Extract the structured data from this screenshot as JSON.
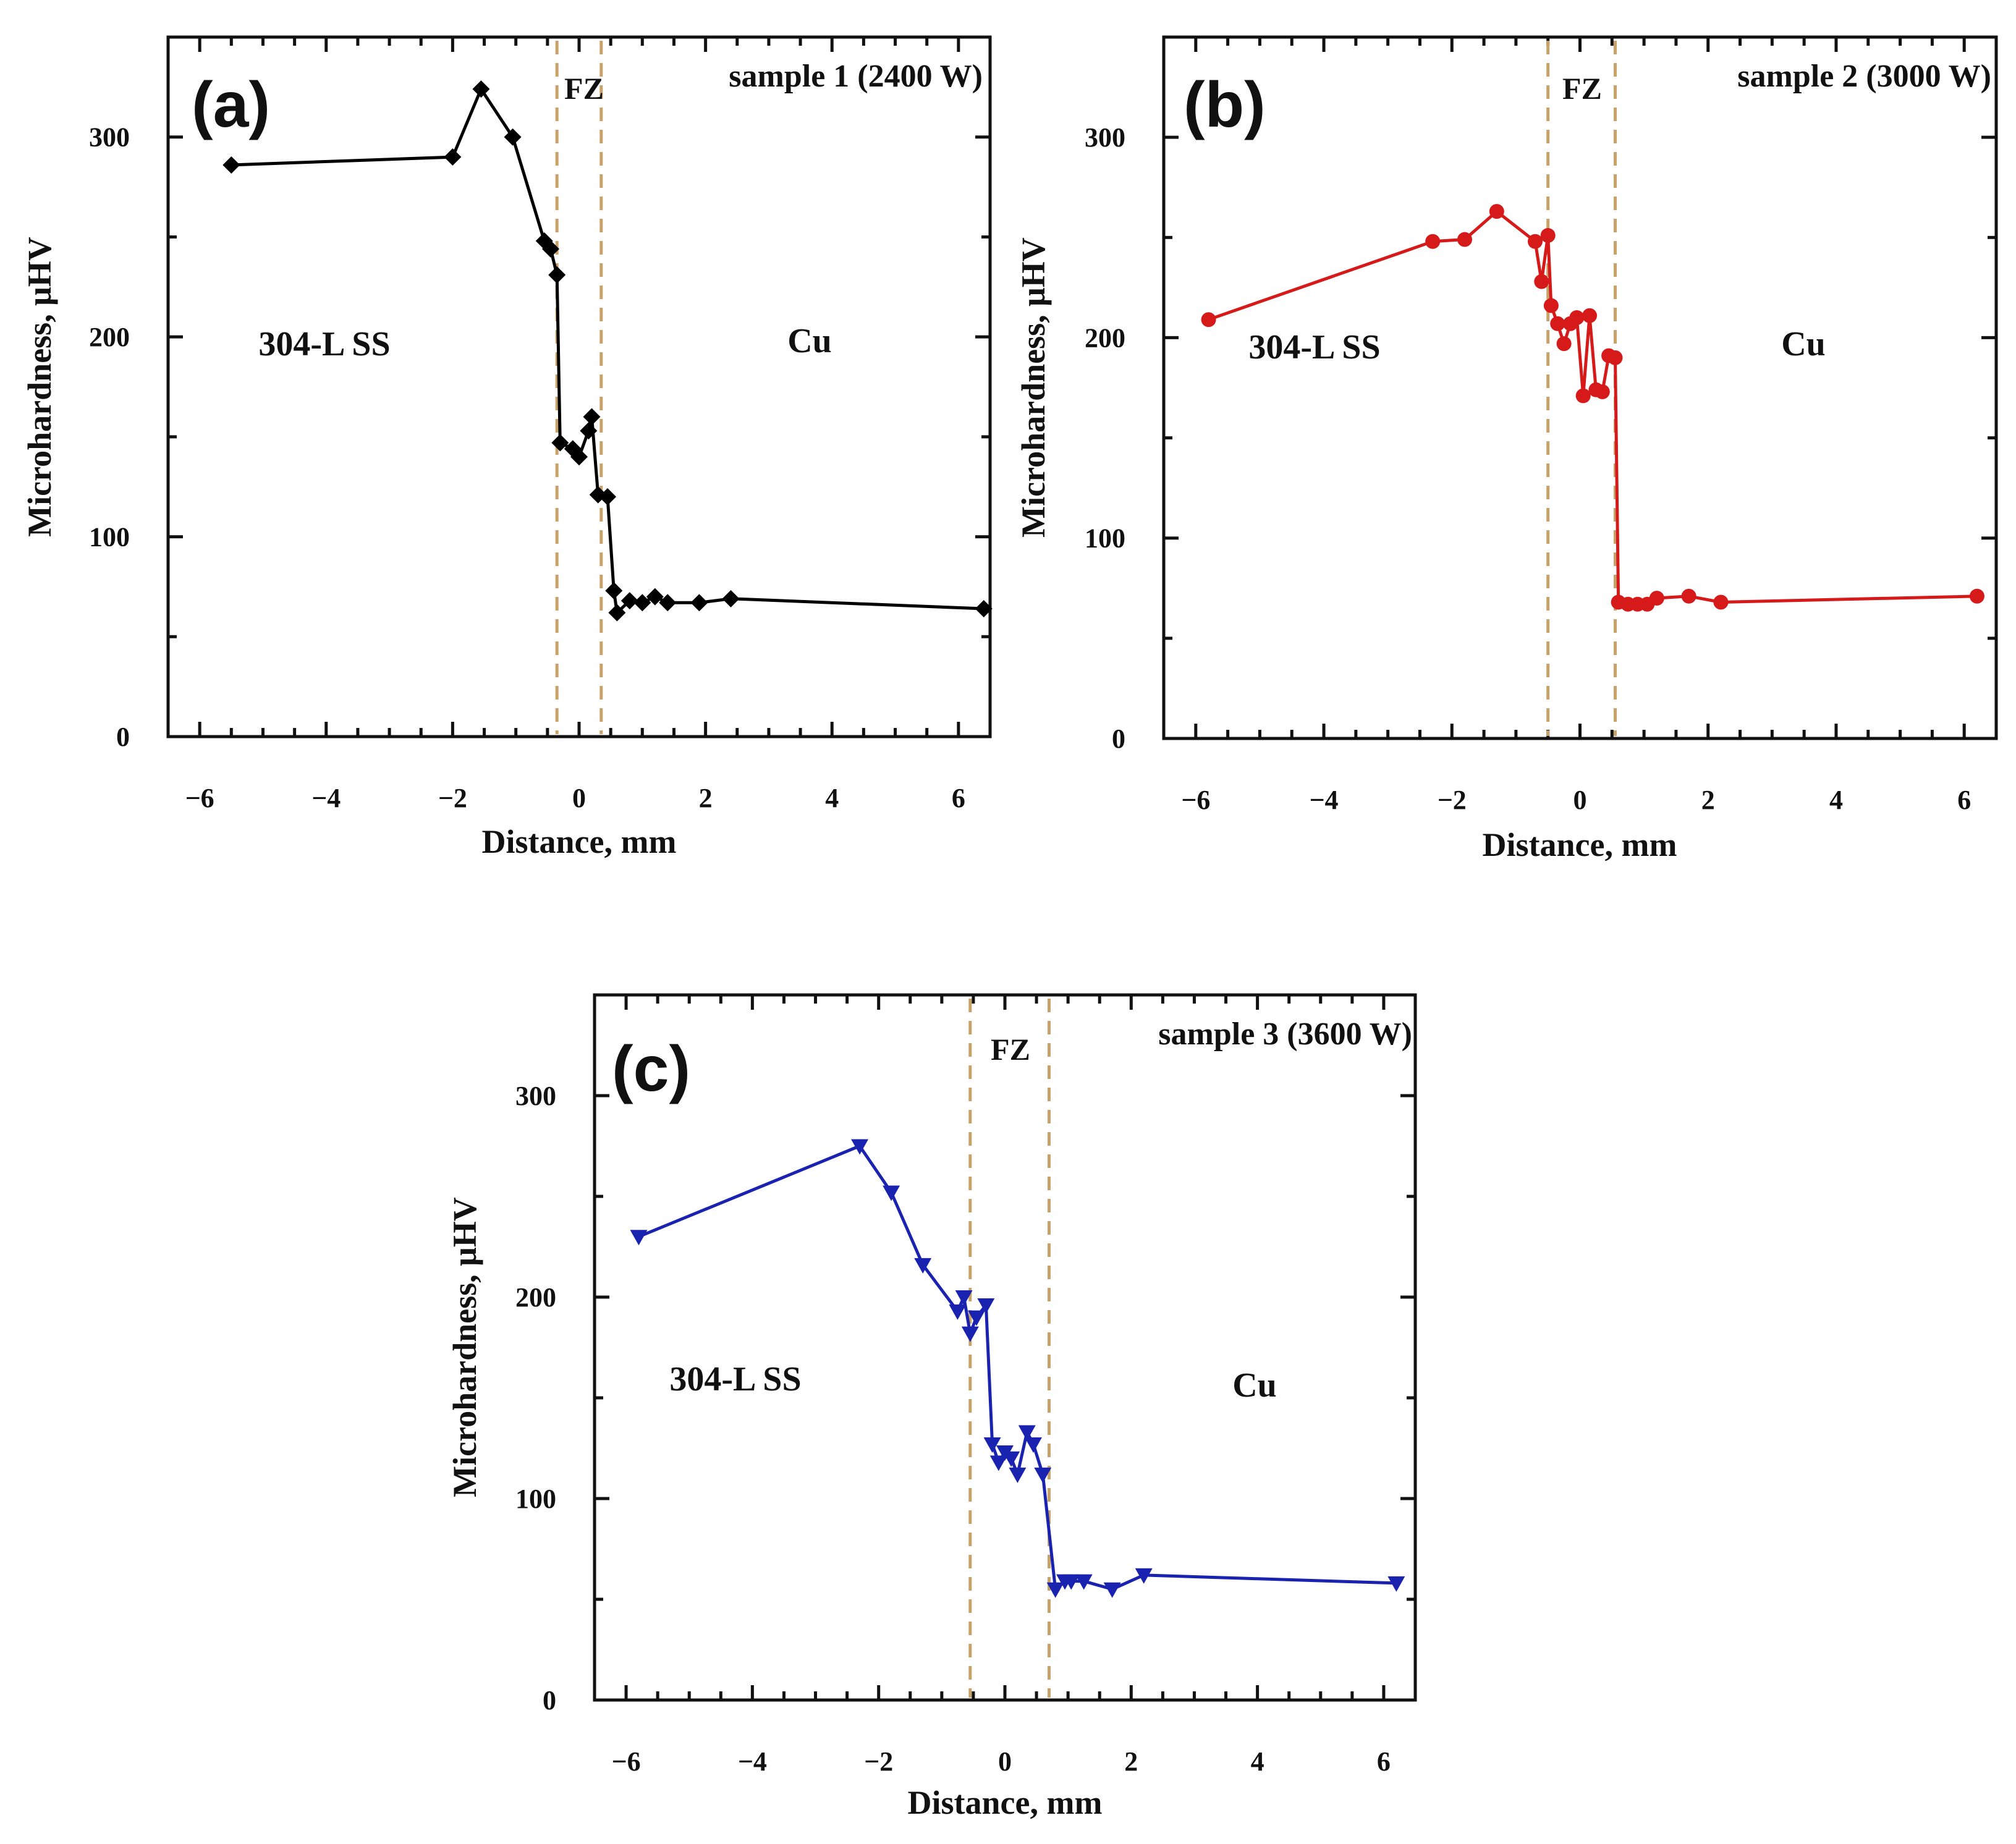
{
  "chart_data": [
    {
      "type": "line",
      "panel": "(a)",
      "title": "sample 1 (2400 W)",
      "xlabel": "Distance, mm",
      "ylabel": "Microhardness, μHV",
      "xlim": [
        -6.5,
        6.5
      ],
      "ylim": [
        0,
        350
      ],
      "xticks": [
        -6,
        -4,
        -2,
        0,
        2,
        4,
        6
      ],
      "xtick_labels": [
        "−6",
        "−4",
        "−2",
        "0",
        "2",
        "4",
        "6"
      ],
      "yticks": [
        0,
        100,
        200,
        300
      ],
      "ytick_labels": [
        "0",
        "100",
        "200",
        "300"
      ],
      "fz_label": "FZ",
      "fz_bounds": [
        -0.35,
        0.35
      ],
      "region_left": "304-L SS",
      "region_right": "Cu",
      "marker": "diamond",
      "color": "#000000",
      "series": [
        {
          "name": "sample 1 (2400 W)",
          "x": [
            -5.5,
            -2.0,
            -1.55,
            -1.05,
            -0.55,
            -0.45,
            -0.35,
            -0.3,
            -0.1,
            0.0,
            0.15,
            0.2,
            0.3,
            0.45,
            0.55,
            0.6,
            0.8,
            1.0,
            1.2,
            1.4,
            1.9,
            2.4,
            6.4
          ],
          "y": [
            286,
            290,
            324,
            300,
            248,
            244,
            231,
            147,
            144,
            140,
            153,
            160,
            121,
            120,
            73,
            62,
            68,
            67,
            70,
            67,
            67,
            69,
            64
          ]
        }
      ]
    },
    {
      "type": "line",
      "panel": "(b)",
      "title": "sample 2 (3000 W)",
      "xlabel": "Distance, mm",
      "ylabel": "Microhardness, μHV",
      "xlim": [
        -6.5,
        6.5
      ],
      "ylim": [
        0,
        350
      ],
      "xticks": [
        -6,
        -4,
        -2,
        0,
        2,
        4,
        6
      ],
      "xtick_labels": [
        "−6",
        "−4",
        "−2",
        "0",
        "2",
        "4",
        "6"
      ],
      "yticks": [
        0,
        100,
        200,
        300
      ],
      "ytick_labels": [
        "0",
        "100",
        "200",
        "300"
      ],
      "fz_label": "FZ",
      "fz_bounds": [
        -0.5,
        0.55
      ],
      "region_left": "304-L SS",
      "region_right": "Cu",
      "marker": "circle",
      "color": "#d61a1a",
      "series": [
        {
          "name": "sample 2 (3000 W)",
          "x": [
            -5.8,
            -2.3,
            -1.8,
            -1.3,
            -0.7,
            -0.6,
            -0.5,
            -0.45,
            -0.35,
            -0.25,
            -0.15,
            -0.05,
            0.05,
            0.15,
            0.25,
            0.35,
            0.45,
            0.55,
            0.6,
            0.75,
            0.9,
            1.05,
            1.2,
            1.7,
            2.2,
            6.2
          ],
          "y": [
            209,
            248,
            249,
            263,
            248,
            228,
            251,
            216,
            207,
            197,
            207,
            210,
            171,
            211,
            174,
            173,
            191,
            190,
            68,
            67,
            67,
            67,
            70,
            71,
            68,
            71
          ]
        }
      ]
    },
    {
      "type": "line",
      "panel": "(c)",
      "title": "sample 3 (3600 W)",
      "xlabel": "Distance, mm",
      "ylabel": "Microhardness, μHV",
      "xlim": [
        -6.5,
        6.5
      ],
      "ylim": [
        0,
        350
      ],
      "xticks": [
        -6,
        -4,
        -2,
        0,
        2,
        4,
        6
      ],
      "xtick_labels": [
        "−6",
        "−4",
        "−2",
        "0",
        "2",
        "4",
        "6"
      ],
      "yticks": [
        0,
        100,
        200,
        300
      ],
      "ytick_labels": [
        "0",
        "100",
        "200",
        "300"
      ],
      "fz_label": "FZ",
      "fz_bounds": [
        -0.55,
        0.7
      ],
      "region_left": "304-L SS",
      "region_right": "Cu",
      "marker": "triangle-down",
      "color": "#1a23b0",
      "series": [
        {
          "name": "sample 3 (3600 W)",
          "x": [
            -5.8,
            -2.3,
            -1.8,
            -1.3,
            -0.75,
            -0.65,
            -0.55,
            -0.45,
            -0.3,
            -0.2,
            -0.1,
            0.0,
            0.1,
            0.2,
            0.35,
            0.45,
            0.6,
            0.8,
            0.95,
            1.05,
            1.25,
            1.7,
            2.2,
            6.2
          ],
          "y": [
            230,
            275,
            252,
            216,
            193,
            200,
            182,
            190,
            196,
            127,
            118,
            123,
            120,
            112,
            133,
            127,
            112,
            55,
            59,
            59,
            59,
            55,
            62,
            58
          ]
        }
      ]
    }
  ]
}
